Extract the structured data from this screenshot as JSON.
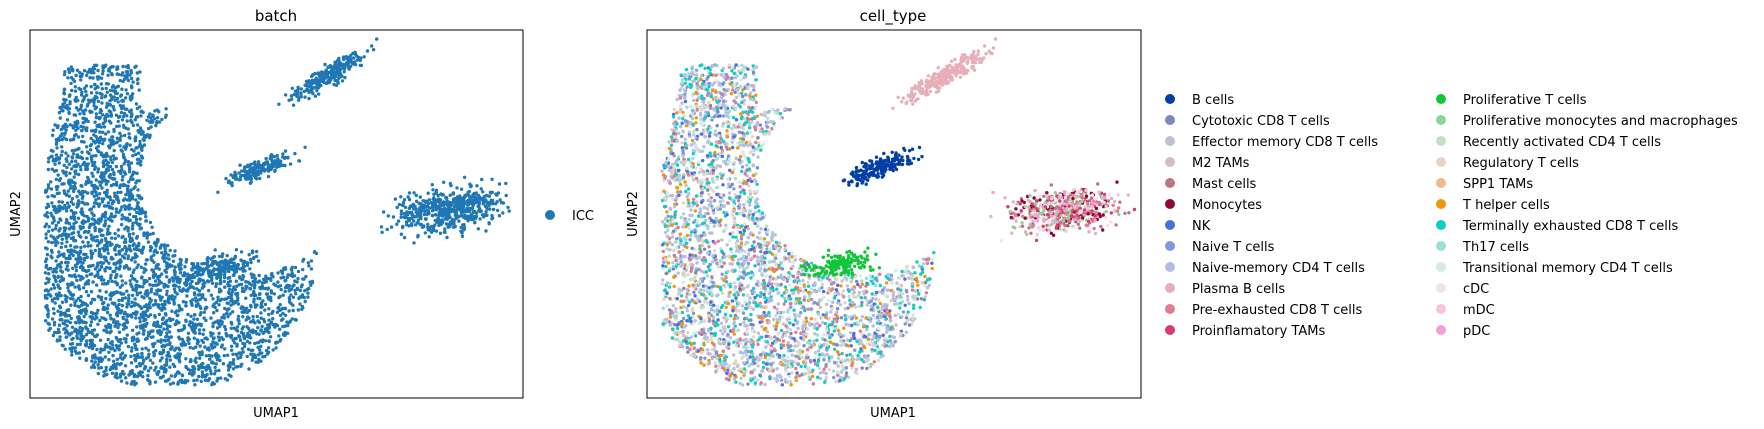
{
  "chart_data": [
    {
      "type": "scatter",
      "title": "batch",
      "xlabel": "UMAP1",
      "ylabel": "UMAP2",
      "legend": "right",
      "series": [
        {
          "name": "ICC",
          "color": "#1f77b4"
        }
      ]
    },
    {
      "type": "scatter",
      "title": "cell_type",
      "xlabel": "UMAP1",
      "ylabel": "UMAP2",
      "legend": "right",
      "series": [
        {
          "name": "B cells",
          "color": "#023fa5"
        },
        {
          "name": "Cytotoxic CD8 T cells",
          "color": "#7d87b9"
        },
        {
          "name": "Effector memory CD8 T cells",
          "color": "#bec1d4"
        },
        {
          "name": "M2 TAMs",
          "color": "#d6bcc0"
        },
        {
          "name": "Mast cells",
          "color": "#bb7784"
        },
        {
          "name": "Monocytes",
          "color": "#8e063b"
        },
        {
          "name": "NK",
          "color": "#4a6fe3"
        },
        {
          "name": "Naive T cells",
          "color": "#8595e1"
        },
        {
          "name": "Naive-memory CD4 T cells",
          "color": "#b5bbe3"
        },
        {
          "name": "Plasma B cells",
          "color": "#e6afb9"
        },
        {
          "name": "Pre-exhausted CD8 T cells",
          "color": "#e07b91"
        },
        {
          "name": "Proinflamatory TAMs",
          "color": "#d33f6a"
        },
        {
          "name": "Proliferative T cells",
          "color": "#11c638"
        },
        {
          "name": "Proliferative monocytes and macrophages",
          "color": "#8dd593"
        },
        {
          "name": "Recently activated CD4 T cells",
          "color": "#c6dec7"
        },
        {
          "name": "Regulatory T cells",
          "color": "#ead3c6"
        },
        {
          "name": "SPP1 TAMs",
          "color": "#f0b98d"
        },
        {
          "name": "T helper cells",
          "color": "#ef9708"
        },
        {
          "name": "Terminally exhausted CD8 T cells",
          "color": "#0fcfc0"
        },
        {
          "name": "Th17 cells",
          "color": "#9cded6"
        },
        {
          "name": "Transitional memory CD4 T cells",
          "color": "#d5eae7"
        },
        {
          "name": "cDC",
          "color": "#f3e1eb"
        },
        {
          "name": "mDC",
          "color": "#f6c4e1"
        },
        {
          "name": "pDC",
          "color": "#f79cd4"
        }
      ]
    }
  ]
}
